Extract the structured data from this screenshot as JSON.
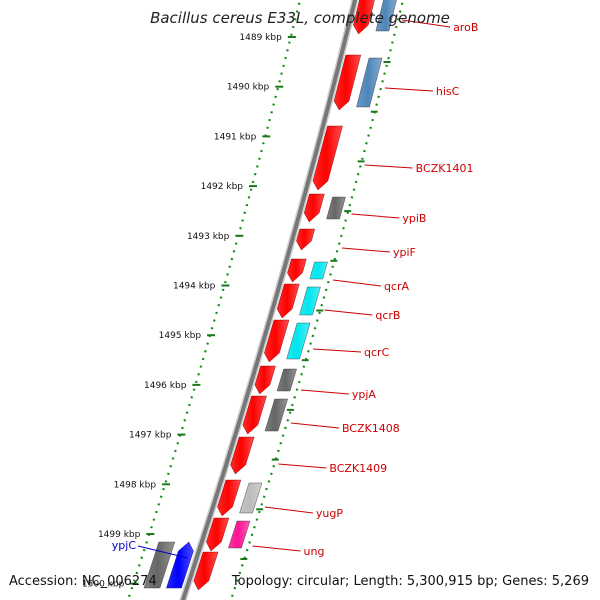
{
  "genome_map": {
    "title": "Bacillus cereus E33L, complete genome",
    "accession": "Accession: NC_006274",
    "summary": "Topology: circular; Length: 5,300,915 bp; Genes: 5,269",
    "colors": {
      "backbone": "#777777",
      "ruler_dots": "#1a8a1a",
      "tick": "#1a7a1a",
      "forward_gene": "#ff0000",
      "label_red": "#cc0000",
      "label_blue": "#0000cc"
    },
    "ruler_ticks": [
      {
        "kbp": 1489,
        "label": "1489 kbp"
      },
      {
        "kbp": 1490,
        "label": "1490 kbp"
      },
      {
        "kbp": 1491,
        "label": "1491 kbp"
      },
      {
        "kbp": 1492,
        "label": "1492 kbp"
      },
      {
        "kbp": 1493,
        "label": "1493 kbp"
      },
      {
        "kbp": 1494,
        "label": "1494 kbp"
      },
      {
        "kbp": 1495,
        "label": "1495 kbp"
      },
      {
        "kbp": 1496,
        "label": "1496 kbp"
      },
      {
        "kbp": 1497,
        "label": "1497 kbp"
      },
      {
        "kbp": 1498,
        "label": "1498 kbp"
      },
      {
        "kbp": 1499,
        "label": "1499 kbp"
      },
      {
        "kbp": 1500,
        "label": "1500 kbp"
      }
    ],
    "gene_labels": [
      {
        "name": "aroB",
        "color": "#cc0000"
      },
      {
        "name": "hisC",
        "color": "#cc0000"
      },
      {
        "name": "BCZK1401",
        "color": "#cc0000"
      },
      {
        "name": "ypiB",
        "color": "#cc0000"
      },
      {
        "name": "ypiF",
        "color": "#cc0000"
      },
      {
        "name": "qcrA",
        "color": "#cc0000"
      },
      {
        "name": "qcrB",
        "color": "#cc0000"
      },
      {
        "name": "qcrC",
        "color": "#cc0000"
      },
      {
        "name": "ypjA",
        "color": "#cc0000"
      },
      {
        "name": "BCZK1408",
        "color": "#cc0000"
      },
      {
        "name": "BCZK1409",
        "color": "#cc0000"
      },
      {
        "name": "yugP",
        "color": "#cc0000"
      },
      {
        "name": "ung",
        "color": "#cc0000"
      },
      {
        "name": "ypjC",
        "color": "#0000cc"
      }
    ],
    "category_colors": [
      "#4f86b8",
      "#666666",
      "#00e5ee",
      "#bbbbbb",
      "#ff1493",
      "#0000ff"
    ]
  }
}
